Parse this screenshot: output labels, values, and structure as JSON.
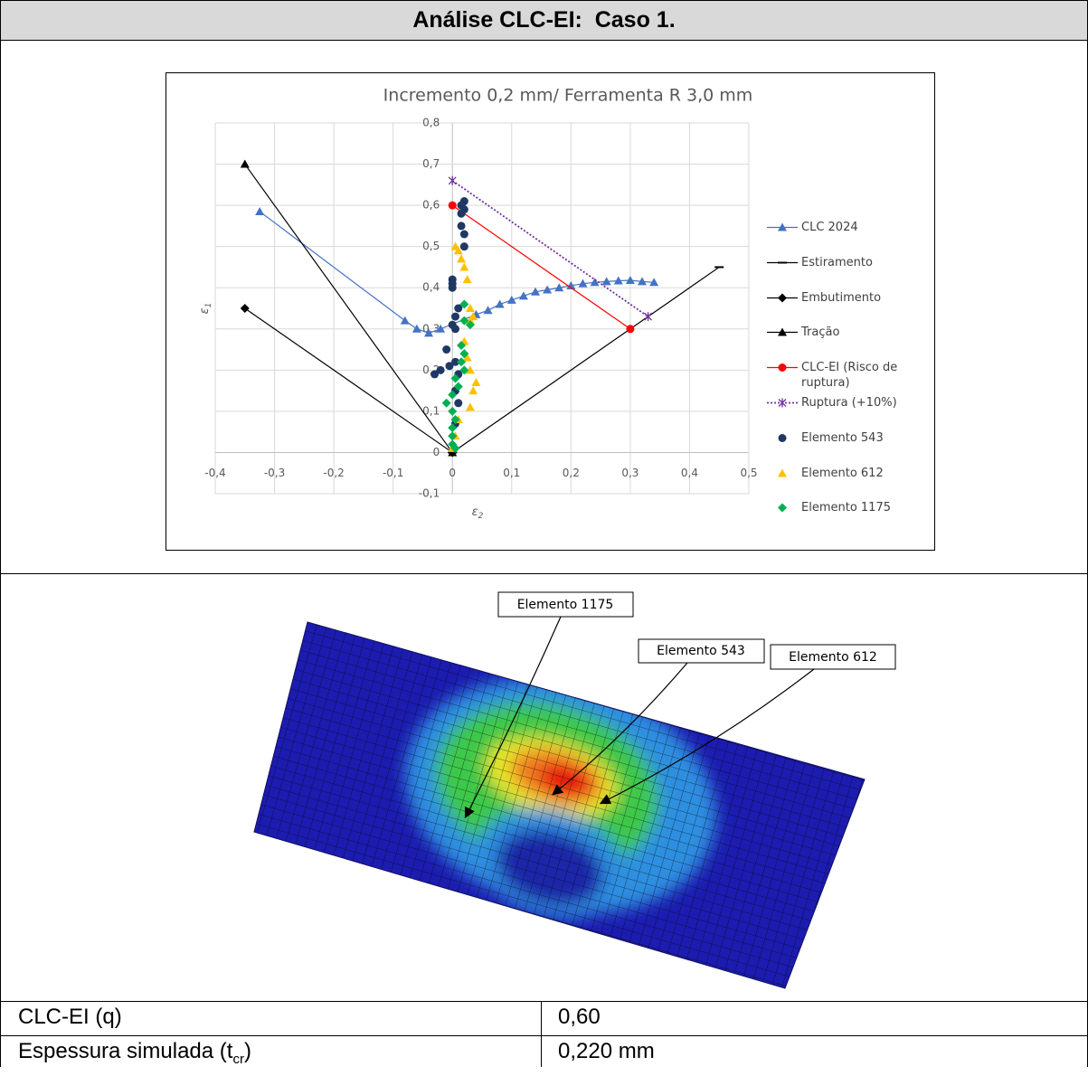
{
  "header": {
    "title": "Análise CLC-EI:  Caso 1."
  },
  "chart": {
    "type": "scatter",
    "title": "Incremento 0,2 mm/ Ferramenta R 3,0 mm",
    "x_label": {
      "symbol": "ε",
      "sub": "2"
    },
    "y_label": {
      "symbol": "ε",
      "sub": "1"
    },
    "xlim": [
      -0.4,
      0.5
    ],
    "ylim": [
      -0.1,
      0.8
    ],
    "xticks": [
      {
        "value": -0.4,
        "label": "-0,4"
      },
      {
        "value": -0.3,
        "label": "-0,3"
      },
      {
        "value": -0.2,
        "label": "-0,2"
      },
      {
        "value": -0.1,
        "label": "-0,1"
      },
      {
        "value": 0,
        "label": "0"
      },
      {
        "value": 0.1,
        "label": "0,1"
      },
      {
        "value": 0.2,
        "label": "0,2"
      },
      {
        "value": 0.3,
        "label": "0,3"
      },
      {
        "value": 0.4,
        "label": "0,4"
      },
      {
        "value": 0.5,
        "label": "0,5"
      }
    ],
    "yticks": [
      {
        "value": -0.1,
        "label": "-0,1"
      },
      {
        "value": 0,
        "label": "0"
      },
      {
        "value": 0.1,
        "label": "0,1"
      },
      {
        "value": 0.2,
        "label": "0,2"
      },
      {
        "value": 0.3,
        "label": "0,3"
      },
      {
        "value": 0.4,
        "label": "0,4"
      },
      {
        "value": 0.5,
        "label": "0,5"
      },
      {
        "value": 0.6,
        "label": "0,6"
      },
      {
        "value": 0.7,
        "label": "0,7"
      },
      {
        "value": 0.8,
        "label": "0,8"
      }
    ],
    "grid": true,
    "legend": "right",
    "series": [
      {
        "name": "CLC 2024",
        "color": "#4472c4",
        "marker": "triangle",
        "line": "solid",
        "x": [
          -0.325,
          -0.08,
          -0.06,
          -0.04,
          -0.02,
          0.04,
          0.06,
          0.08,
          0.1,
          0.12,
          0.14,
          0.16,
          0.18,
          0.2,
          0.22,
          0.24,
          0.26,
          0.28,
          0.3,
          0.32,
          0.34
        ],
        "values": [
          0.585,
          0.32,
          0.3,
          0.29,
          0.3,
          0.335,
          0.345,
          0.36,
          0.37,
          0.38,
          0.39,
          0.395,
          0.4,
          0.405,
          0.41,
          0.413,
          0.415,
          0.417,
          0.418,
          0.415,
          0.413
        ]
      },
      {
        "name": "Estiramento",
        "color": "#000000",
        "marker": "dash",
        "line": "solid",
        "x": [
          0,
          0.45
        ],
        "values": [
          0,
          0.45
        ]
      },
      {
        "name": "Embutimento",
        "color": "#000000",
        "marker": "diamond",
        "line": "solid",
        "x": [
          -0.35,
          0
        ],
        "values": [
          0.35,
          0
        ]
      },
      {
        "name": "Tração",
        "color": "#000000",
        "marker": "triangle",
        "line": "solid",
        "x": [
          -0.35,
          0
        ],
        "values": [
          0.7,
          0
        ]
      },
      {
        "name": "CLC-EI (Risco de ruptura)",
        "color": "#ff0000",
        "marker": "circle",
        "line": "solid",
        "x": [
          0,
          0.3
        ],
        "values": [
          0.6,
          0.3
        ]
      },
      {
        "name": "Ruptura (+10%)",
        "color": "#7030a0",
        "marker": "x",
        "line": "dotted",
        "x": [
          0,
          0.33
        ],
        "values": [
          0.66,
          0.33
        ]
      },
      {
        "name": "Elemento 543",
        "color": "#1f3864",
        "marker": "circle",
        "line": null,
        "x": [
          0.02,
          0.015,
          0.02,
          0.015,
          0.015,
          0.02,
          0.02,
          0,
          0,
          0,
          0.01,
          0.005,
          0,
          0.005,
          -0.01,
          -0.005,
          -0.02,
          -0.03,
          0.005,
          0.01,
          0.005,
          0.01,
          0.005
        ],
        "values": [
          0.61,
          0.6,
          0.59,
          0.58,
          0.55,
          0.53,
          0.5,
          0.42,
          0.41,
          0.4,
          0.35,
          0.33,
          0.31,
          0.3,
          0.25,
          0.21,
          0.2,
          0.19,
          0.22,
          0.19,
          0.15,
          0.12,
          0.07
        ]
      },
      {
        "name": "Elemento 612",
        "color": "#ffc000",
        "marker": "triangle",
        "line": null,
        "x": [
          0.005,
          0.01,
          0.015,
          0.02,
          0.025,
          0.03,
          0.035,
          0.03,
          0.02,
          0.025,
          0.03,
          0.04,
          0.035,
          0.03,
          0.01,
          0.005,
          0
        ],
        "values": [
          0.5,
          0.49,
          0.47,
          0.45,
          0.42,
          0.35,
          0.33,
          0.32,
          0.27,
          0.23,
          0.2,
          0.17,
          0.15,
          0.11,
          0.08,
          0.04,
          0.01
        ]
      },
      {
        "name": "Elemento 1175",
        "color": "#00b050",
        "marker": "diamond",
        "line": null,
        "x": [
          0.02,
          0.02,
          0.03,
          0.015,
          0.02,
          0.015,
          0.02,
          0.005,
          0.01,
          0,
          -0.01,
          0,
          0.005,
          0,
          0,
          0,
          0.005
        ],
        "values": [
          0.36,
          0.32,
          0.31,
          0.26,
          0.24,
          0.22,
          0.2,
          0.18,
          0.16,
          0.14,
          0.12,
          0.1,
          0.08,
          0.06,
          0.04,
          0.02,
          0.01
        ]
      }
    ]
  },
  "image": {
    "callouts": [
      {
        "label": "Elemento 1175"
      },
      {
        "label": "Elemento 543"
      },
      {
        "label": "Elemento 612"
      }
    ]
  },
  "table": {
    "rows": [
      [
        {
          "text": "CLC-EI (q)"
        },
        {
          "text": "0,60"
        }
      ],
      [
        {
          "text": "Espessura simulada (t",
          "sub": "cr",
          "after": ")"
        },
        {
          "text": "0,220 mm"
        }
      ]
    ]
  }
}
